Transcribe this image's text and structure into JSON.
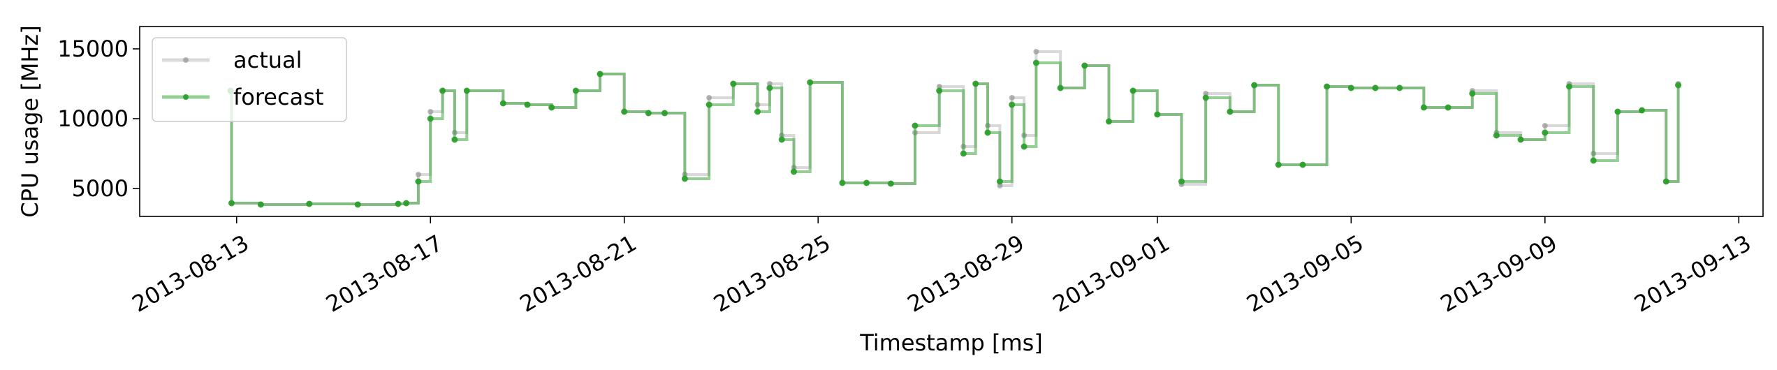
{
  "chart_data": {
    "type": "line",
    "xlabel": "Timestamp [ms]",
    "ylabel": "CPU usage [MHz]",
    "x_is_date": true,
    "xlim": [
      "2013-08-11T00:00",
      "2013-09-13T12:00"
    ],
    "ylim": [
      3000,
      16600
    ],
    "x_ticks": [
      "2013-08-13",
      "2013-08-17",
      "2013-08-21",
      "2013-08-25",
      "2013-08-29",
      "2013-09-01",
      "2013-09-05",
      "2013-09-09",
      "2013-09-13"
    ],
    "y_ticks": [
      5000,
      10000,
      15000
    ],
    "legend_position": "top-left",
    "grid": false,
    "series": [
      {
        "name": "actual",
        "color": "#808080",
        "x": [
          "2013-08-12T21:00",
          "2013-08-12T21:30",
          "2013-08-13T12:00",
          "2013-08-14T12:00",
          "2013-08-15T12:00",
          "2013-08-16T08:00",
          "2013-08-16T12:00",
          "2013-08-16T18:00",
          "2013-08-17T00:00",
          "2013-08-17T06:00",
          "2013-08-17T12:00",
          "2013-08-17T18:00",
          "2013-08-18T12:00",
          "2013-08-19T00:00",
          "2013-08-19T12:00",
          "2013-08-20T00:00",
          "2013-08-20T12:00",
          "2013-08-21T00:00",
          "2013-08-21T12:00",
          "2013-08-21T20:00",
          "2013-08-22T06:00",
          "2013-08-22T18:00",
          "2013-08-23T06:00",
          "2013-08-23T18:00",
          "2013-08-24T00:00",
          "2013-08-24T06:00",
          "2013-08-24T12:00",
          "2013-08-24T20:00",
          "2013-08-25T12:00",
          "2013-08-26T00:00",
          "2013-08-26T12:00",
          "2013-08-27T00:00",
          "2013-08-27T12:00",
          "2013-08-28T00:00",
          "2013-08-28T06:00",
          "2013-08-28T12:00",
          "2013-08-28T18:00",
          "2013-08-29T00:00",
          "2013-08-29T06:00",
          "2013-08-29T12:00",
          "2013-08-30T00:00",
          "2013-08-30T12:00",
          "2013-08-31T00:00",
          "2013-08-31T12:00",
          "2013-09-01T00:00",
          "2013-09-01T12:00",
          "2013-09-02T00:00",
          "2013-09-02T12:00",
          "2013-09-03T00:00",
          "2013-09-03T12:00",
          "2013-09-04T00:00",
          "2013-09-04T12:00",
          "2013-09-05T00:00",
          "2013-09-05T12:00",
          "2013-09-06T00:00",
          "2013-09-06T12:00",
          "2013-09-07T00:00",
          "2013-09-07T12:00",
          "2013-09-08T00:00",
          "2013-09-08T12:00",
          "2013-09-09T00:00",
          "2013-09-09T12:00",
          "2013-09-10T00:00",
          "2013-09-10T12:00",
          "2013-09-11T00:00",
          "2013-09-11T12:00",
          "2013-09-11T18:00"
        ],
        "values": [
          12000,
          3950,
          3850,
          3900,
          3850,
          3900,
          3950,
          6000,
          10500,
          12000,
          9000,
          12000,
          11100,
          11000,
          10800,
          12000,
          13200,
          10500,
          10400,
          10400,
          6000,
          11500,
          12500,
          11000,
          12500,
          8800,
          6500,
          12600,
          5400,
          5400,
          5350,
          9000,
          12300,
          8000,
          12500,
          9500,
          5200,
          11500,
          8800,
          14800,
          12200,
          13800,
          9800,
          12000,
          10300,
          5300,
          11800,
          10500,
          12400,
          6700,
          6700,
          12300,
          12200,
          12200,
          12200,
          10800,
          10800,
          12000,
          9000,
          8500,
          9500,
          12500,
          7500,
          10500,
          10600,
          5500,
          12500
        ]
      },
      {
        "name": "forecast",
        "color": "#2ca02c",
        "x": [
          "2013-08-12T21:00",
          "2013-08-12T21:30",
          "2013-08-13T12:00",
          "2013-08-14T12:00",
          "2013-08-15T12:00",
          "2013-08-16T08:00",
          "2013-08-16T12:00",
          "2013-08-16T18:00",
          "2013-08-17T00:00",
          "2013-08-17T06:00",
          "2013-08-17T12:00",
          "2013-08-17T18:00",
          "2013-08-18T12:00",
          "2013-08-19T00:00",
          "2013-08-19T12:00",
          "2013-08-20T00:00",
          "2013-08-20T12:00",
          "2013-08-21T00:00",
          "2013-08-21T12:00",
          "2013-08-21T20:00",
          "2013-08-22T06:00",
          "2013-08-22T18:00",
          "2013-08-23T06:00",
          "2013-08-23T18:00",
          "2013-08-24T00:00",
          "2013-08-24T06:00",
          "2013-08-24T12:00",
          "2013-08-24T20:00",
          "2013-08-25T12:00",
          "2013-08-26T00:00",
          "2013-08-26T12:00",
          "2013-08-27T00:00",
          "2013-08-27T12:00",
          "2013-08-28T00:00",
          "2013-08-28T06:00",
          "2013-08-28T12:00",
          "2013-08-28T18:00",
          "2013-08-29T00:00",
          "2013-08-29T06:00",
          "2013-08-29T12:00",
          "2013-08-30T00:00",
          "2013-08-30T12:00",
          "2013-08-31T00:00",
          "2013-08-31T12:00",
          "2013-09-01T00:00",
          "2013-09-01T12:00",
          "2013-09-02T00:00",
          "2013-09-02T12:00",
          "2013-09-03T00:00",
          "2013-09-03T12:00",
          "2013-09-04T00:00",
          "2013-09-04T12:00",
          "2013-09-05T00:00",
          "2013-09-05T12:00",
          "2013-09-06T00:00",
          "2013-09-06T12:00",
          "2013-09-07T00:00",
          "2013-09-07T12:00",
          "2013-09-08T00:00",
          "2013-09-08T12:00",
          "2013-09-09T00:00",
          "2013-09-09T12:00",
          "2013-09-10T00:00",
          "2013-09-10T12:00",
          "2013-09-11T00:00",
          "2013-09-11T12:00",
          "2013-09-11T18:00"
        ],
        "values": [
          12000,
          3950,
          3850,
          3900,
          3850,
          3900,
          3950,
          5500,
          10000,
          12000,
          8500,
          12000,
          11100,
          11000,
          10800,
          12000,
          13200,
          10500,
          10400,
          10400,
          5700,
          11000,
          12500,
          10500,
          12200,
          8500,
          6200,
          12600,
          5400,
          5400,
          5350,
          9500,
          12000,
          7500,
          12500,
          9000,
          5500,
          11000,
          8000,
          14000,
          12200,
          13800,
          9800,
          12000,
          10300,
          5500,
          11500,
          10500,
          12400,
          6700,
          6700,
          12300,
          12200,
          12200,
          12200,
          10800,
          10800,
          11800,
          8800,
          8500,
          9000,
          12300,
          7000,
          10500,
          10600,
          5500,
          12400
        ]
      }
    ]
  }
}
